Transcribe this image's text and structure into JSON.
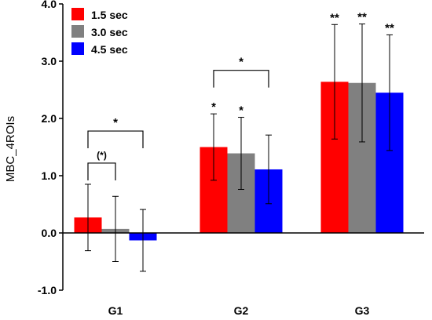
{
  "chart_data": {
    "type": "bar",
    "categories": [
      "G1",
      "G2",
      "G3"
    ],
    "ylabel": "MBC_4ROIs",
    "ylim": [
      -1.0,
      4.0
    ],
    "yticks": [
      "-1.0",
      "0.0",
      "1.0",
      "2.0",
      "3.0",
      "4.0"
    ],
    "ytick_values": [
      -1,
      0,
      1,
      2,
      3,
      4
    ],
    "grid": false,
    "legend_position": "top-left",
    "series": [
      {
        "name": "1.5 sec",
        "color": "#ff0000",
        "values": [
          0.27,
          1.5,
          2.64
        ],
        "err": [
          0.58,
          0.58,
          1.0
        ]
      },
      {
        "name": "3.0 sec",
        "color": "#808080",
        "values": [
          0.07,
          1.39,
          2.62
        ],
        "err": [
          0.57,
          0.63,
          1.03
        ]
      },
      {
        "name": "4.5 sec",
        "color": "#0000ff",
        "values": [
          -0.13,
          1.11,
          2.45
        ],
        "err": [
          0.54,
          0.6,
          1.01
        ]
      }
    ],
    "bar_labels": [
      {
        "category": 1,
        "series": 0,
        "text": "*"
      },
      {
        "category": 1,
        "series": 1,
        "text": "*"
      },
      {
        "category": 2,
        "series": 0,
        "text": "**"
      },
      {
        "category": 2,
        "series": 1,
        "text": "**"
      },
      {
        "category": 2,
        "series": 2,
        "text": "**"
      }
    ],
    "brackets": [
      {
        "category": 0,
        "from": 0,
        "to": 1,
        "level": 1.22,
        "text": "(*)"
      },
      {
        "category": 0,
        "from": 0,
        "to": 2,
        "level": 1.78,
        "text": "*"
      },
      {
        "category": 1,
        "from": 0,
        "to": 2,
        "level": 2.84,
        "text": "*"
      }
    ]
  }
}
